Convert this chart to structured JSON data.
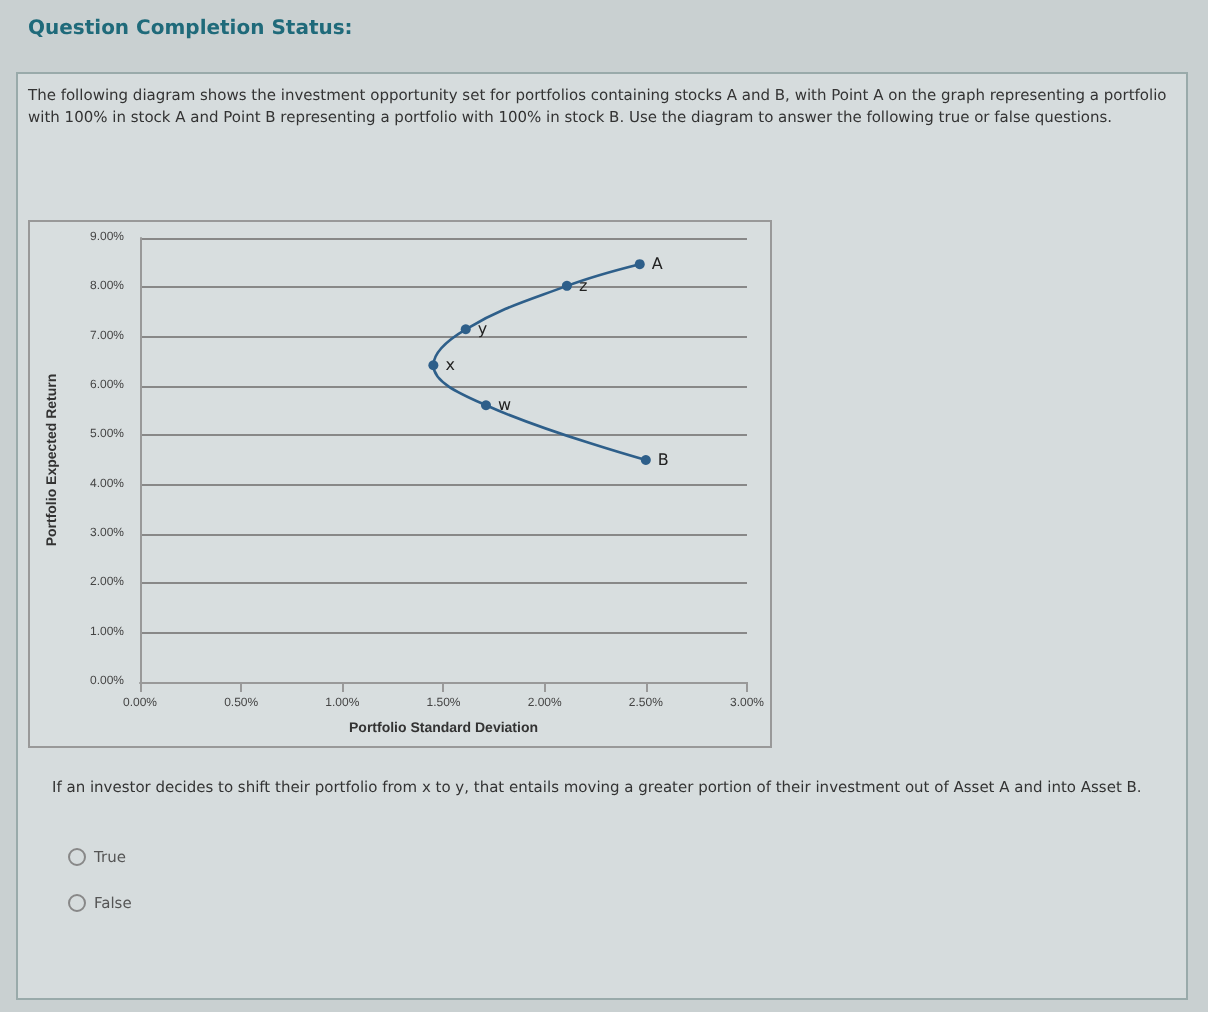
{
  "chart_data": {
    "type": "line",
    "title": "Question Completion Status:",
    "subtitle": "The following diagram shows the investment opportunity set for portfolios containing stocks A and B, with Point A on the graph representing a portfolio with 100% in stock A and Point B representing a portfolio with 100% in stock B. Use the diagram to answer the following true or false questions.",
    "xlabel": "Portfolio Standard Deviation",
    "ylabel": "Portfolio Expected Return",
    "x": [
      2.47,
      2.11,
      1.61,
      1.45,
      1.71,
      2.5
    ],
    "series": [
      {
        "color": "#2e5f8a",
        "values": [
          8.47,
          8.03,
          7.15,
          6.42,
          5.61,
          4.5
        ]
      }
    ],
    "xlim": [
      0,
      3
    ],
    "xticks": [
      {
        "value": 0,
        "label": "0.00%"
      },
      {
        "value": 0.5,
        "label": "0.50%"
      },
      {
        "value": 1,
        "label": "1.00%"
      },
      {
        "value": 1.5,
        "label": "1.50%"
      },
      {
        "value": 2,
        "label": "2.00%"
      },
      {
        "value": 2.5,
        "label": "2.50%"
      },
      {
        "value": 3,
        "label": "3.00%"
      }
    ],
    "ylim": [
      0,
      9
    ],
    "yticks": [
      {
        "value": 0,
        "label": "0.00%"
      },
      {
        "value": 1,
        "label": "1.00%"
      },
      {
        "value": 2,
        "label": "2.00%"
      },
      {
        "value": 3,
        "label": "3.00%"
      },
      {
        "value": 4,
        "label": "4.00%"
      },
      {
        "value": 5,
        "label": "5.00%"
      },
      {
        "value": 6,
        "label": "6.00%"
      },
      {
        "value": 7,
        "label": "7.00%"
      },
      {
        "value": 8,
        "label": "8.00%"
      },
      {
        "value": 9,
        "label": "9.00%"
      }
    ],
    "grid": "y",
    "marker": "circle",
    "line_style": "solid",
    "annotations": [
      {
        "text": "A",
        "x": 2.47,
        "y": 8.47
      },
      {
        "text": "z",
        "x": 2.11,
        "y": 8.03
      },
      {
        "text": "y",
        "x": 1.61,
        "y": 7.15
      },
      {
        "text": "x",
        "x": 1.45,
        "y": 6.42
      },
      {
        "text": "w",
        "x": 1.71,
        "y": 5.61
      },
      {
        "text": "B",
        "x": 2.5,
        "y": 4.5
      },
      "If an investor decides to shift their portfolio from x to y, that entails moving a greater portion of their investment out of Asset A and into Asset B.",
      "True",
      "False"
    ]
  }
}
